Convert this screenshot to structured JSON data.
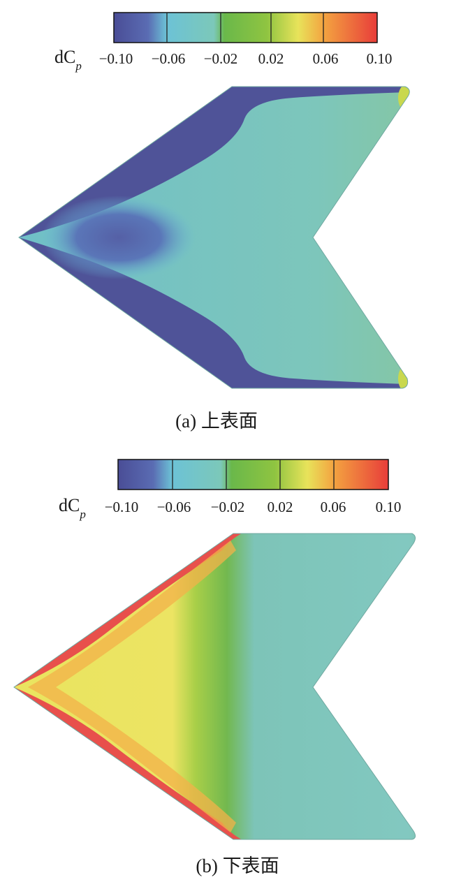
{
  "chart_data": [
    {
      "type": "heatmap",
      "caption": "(a) 上表面",
      "colorbar": {
        "label_main": "dC",
        "label_sub": "p",
        "ticks": [
          "−0.10",
          "−0.06",
          "−0.02",
          "0.02",
          "0.06",
          "0.10"
        ],
        "range": [
          -0.1,
          0.1
        ],
        "colors": [
          "#4a4d96",
          "#5f7bbd",
          "#6cc2d6",
          "#7cc8b9",
          "#6ab84a",
          "#b5d23e",
          "#f2e863",
          "#f38b3e",
          "#e83d3a"
        ]
      },
      "regions": [
        {
          "region": "leading-edge band",
          "value": -0.1
        },
        {
          "region": "apex core",
          "value": -0.07
        },
        {
          "region": "aft wing",
          "value": -0.04
        },
        {
          "region": "trailing-edge tips",
          "value": 0.02
        }
      ]
    },
    {
      "type": "heatmap",
      "caption": "(b) 下表面",
      "colorbar": {
        "label_main": "dC",
        "label_sub": "p",
        "ticks": [
          "−0.10",
          "−0.06",
          "−0.02",
          "0.02",
          "0.06",
          "0.10"
        ],
        "range": [
          -0.1,
          0.1
        ],
        "colors": [
          "#4a4d96",
          "#5f7bbd",
          "#6cc2d6",
          "#7cc8b9",
          "#6ab84a",
          "#b5d23e",
          "#f2e863",
          "#f38b3e",
          "#e83d3a"
        ]
      },
      "regions": [
        {
          "region": "leading edge",
          "value": 0.1
        },
        {
          "region": "forward wing",
          "value": 0.05
        },
        {
          "region": "mid transition",
          "value": 0.0
        },
        {
          "region": "aft wing",
          "value": -0.04
        }
      ]
    }
  ]
}
